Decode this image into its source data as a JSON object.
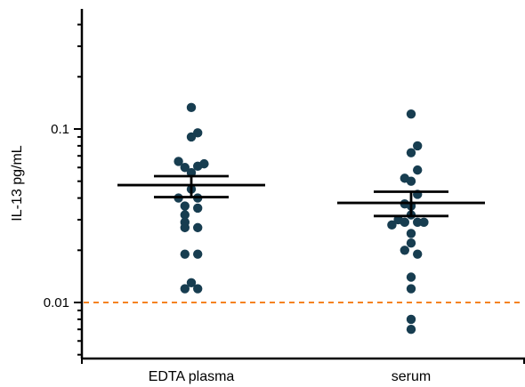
{
  "chart_data": {
    "type": "scatter",
    "ylabel": "IL-13 pg/mL",
    "yscale": "log",
    "ylim": [
      0.005,
      0.6
    ],
    "y_ticks": [
      {
        "value": 0.1,
        "label": "0.1"
      },
      {
        "value": 0.01,
        "label": "0.01"
      }
    ],
    "categories": [
      "EDTA plasma",
      "serum"
    ],
    "groups": [
      {
        "category": "EDTA plasma",
        "values": [
          0.133,
          0.095,
          0.09,
          0.065,
          0.063,
          0.061,
          0.06,
          0.056,
          0.045,
          0.04,
          0.04,
          0.036,
          0.035,
          0.032,
          0.029,
          0.027,
          0.027,
          0.019,
          0.019,
          0.013,
          0.012,
          0.012
        ],
        "offsets": [
          0,
          0.6,
          0,
          -1.2,
          1.2,
          0.6,
          -0.6,
          0,
          0,
          -1.2,
          0.6,
          -0.6,
          0.6,
          -0.6,
          -0.6,
          -0.6,
          0.6,
          -0.6,
          0.6,
          0,
          -0.6,
          0.6
        ],
        "mean": 0.0475,
        "sem_low": 0.0405,
        "sem_high": 0.0535
      },
      {
        "category": "serum",
        "values": [
          0.122,
          0.08,
          0.073,
          0.058,
          0.052,
          0.05,
          0.042,
          0.037,
          0.036,
          0.032,
          0.03,
          0.029,
          0.029,
          0.029,
          0.028,
          0.025,
          0.022,
          0.02,
          0.019,
          0.014,
          0.012,
          0.008,
          0.007
        ],
        "offsets": [
          0,
          0.6,
          0,
          0.6,
          -0.6,
          0,
          0.6,
          -0.6,
          0,
          0,
          -1.2,
          0.6,
          -0.6,
          1.2,
          -1.8,
          0,
          0,
          -0.6,
          0.6,
          0,
          0,
          0,
          0
        ],
        "mean": 0.0375,
        "sem_low": 0.0315,
        "sem_high": 0.0435
      }
    ],
    "reference_line": {
      "value": 0.01,
      "color": "#f5821f",
      "style": "dashed"
    },
    "point_color": "#173d50"
  }
}
